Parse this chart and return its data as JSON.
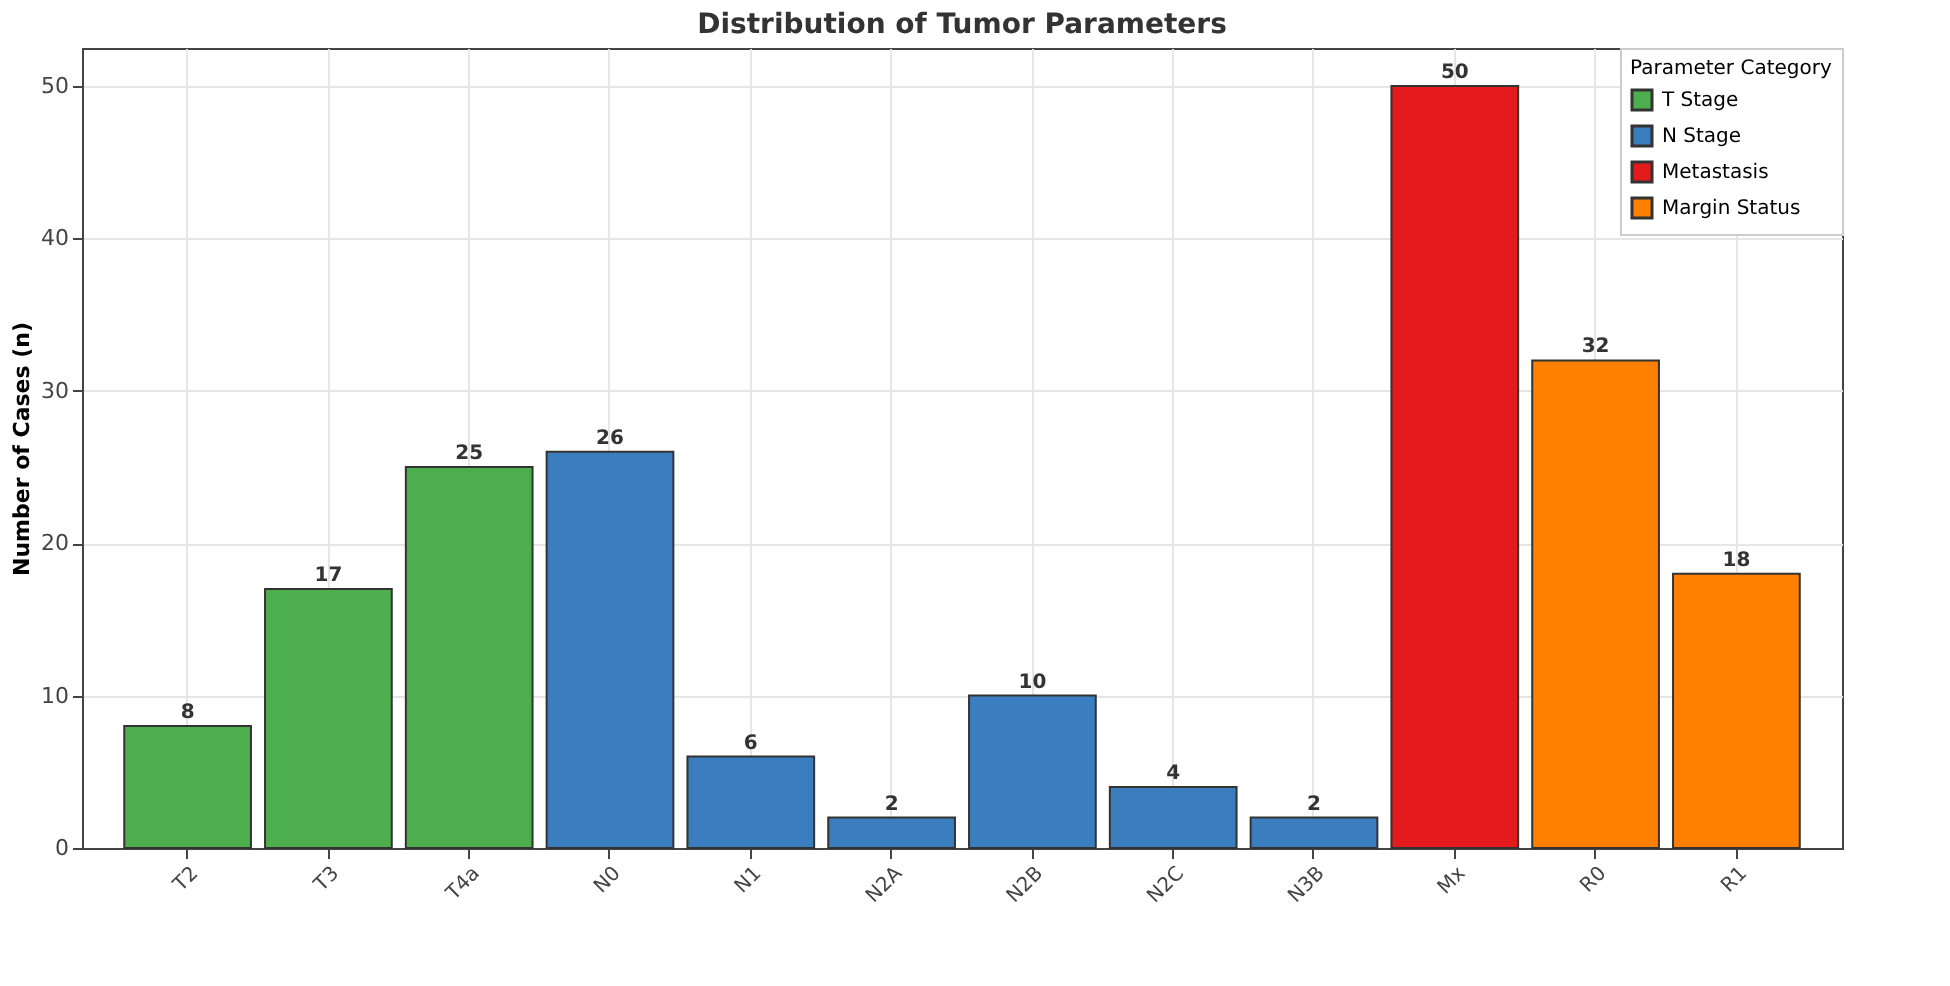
{
  "chart_data": {
    "type": "bar",
    "title": "Distribution of Tumor Parameters",
    "ylabel": "Number of Cases (n)",
    "legend_title": "Parameter Category",
    "categories": [
      "T2",
      "T3",
      "T4a",
      "N0",
      "N1",
      "N2A",
      "N2B",
      "N2C",
      "N3B",
      "Mx",
      "R0",
      "R1"
    ],
    "series": [
      {
        "name": "T Stage",
        "color": "#4cae4c",
        "values": [
          8,
          17,
          25,
          null,
          null,
          null,
          null,
          null,
          null,
          null,
          null,
          null
        ]
      },
      {
        "name": "N Stage",
        "color": "#3a7ebf",
        "values": [
          null,
          null,
          null,
          26,
          6,
          2,
          10,
          4,
          2,
          null,
          null,
          null
        ]
      },
      {
        "name": "Metastasis",
        "color": "#e41a1c",
        "values": [
          null,
          null,
          null,
          null,
          null,
          null,
          null,
          null,
          null,
          50,
          null,
          null
        ]
      },
      {
        "name": "Margin Status",
        "color": "#ff7f00",
        "values": [
          null,
          null,
          null,
          null,
          null,
          null,
          null,
          null,
          null,
          null,
          32,
          18
        ]
      }
    ],
    "ylim": [
      0,
      52.5
    ],
    "yticks": [
      0,
      10,
      20,
      30,
      40,
      50
    ],
    "grid": true,
    "legend": "top right",
    "data_labels": true
  }
}
